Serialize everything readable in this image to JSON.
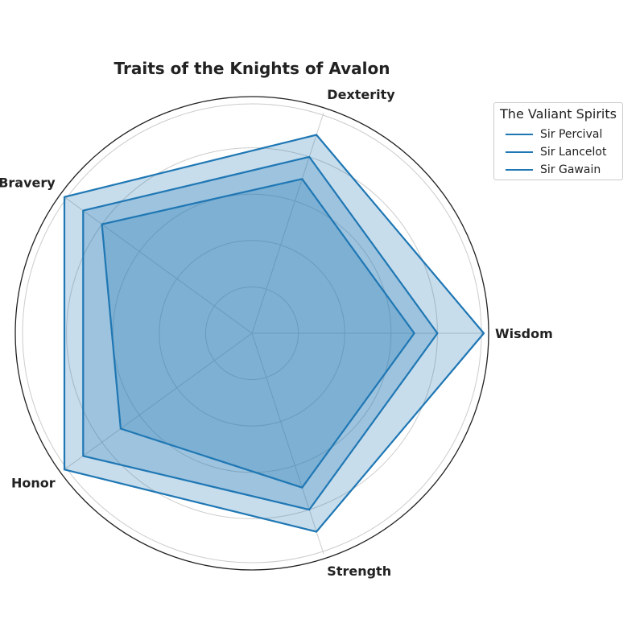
{
  "chart_data": {
    "type": "radar",
    "title": "Traits of the Knights of Avalon",
    "axes": [
      "Wisdom",
      "Dexterity",
      "Bravery",
      "Honor",
      "Strength"
    ],
    "rlim": [
      0,
      10
    ],
    "rticks": [
      2,
      4,
      6,
      8
    ],
    "rtick_labels_shown": false,
    "grid": true,
    "legend": {
      "title": "The Valiant Spirits",
      "placement": "top-right outside"
    },
    "series": [
      {
        "name": "Sir Percival",
        "values": [
          10,
          9,
          10,
          10,
          9
        ],
        "color": "#1f77b4"
      },
      {
        "name": "Sir Lancelot",
        "values": [
          8,
          8,
          9,
          9,
          8
        ],
        "color": "#1f77b4"
      },
      {
        "name": "Sir Gawain",
        "values": [
          7,
          7,
          8,
          7,
          7
        ],
        "color": "#1f77b4"
      }
    ]
  }
}
